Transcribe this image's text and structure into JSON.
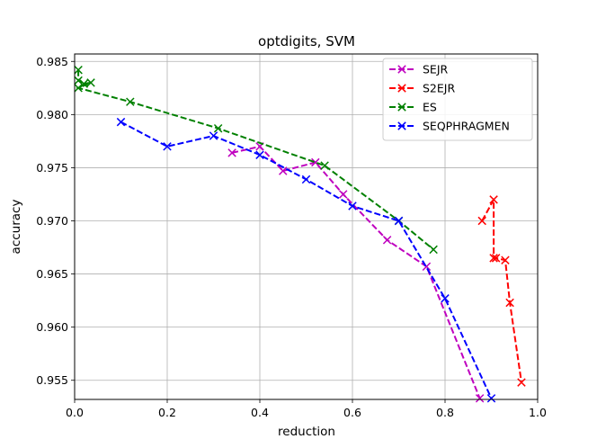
{
  "chart_data": {
    "type": "line",
    "title": "optdigits, SVM",
    "xlabel": "reduction",
    "ylabel": "accuracy",
    "xlim": [
      0.0,
      1.0
    ],
    "ylim": [
      0.9532,
      0.9857
    ],
    "xticks": [
      0.0,
      0.2,
      0.4,
      0.6,
      0.8,
      1.0
    ],
    "xtick_labels": [
      "0.0",
      "0.2",
      "0.4",
      "0.6",
      "0.8",
      "1.0"
    ],
    "yticks": [
      0.955,
      0.96,
      0.965,
      0.97,
      0.975,
      0.98,
      0.985
    ],
    "ytick_labels": [
      "0.955",
      "0.960",
      "0.965",
      "0.970",
      "0.975",
      "0.980",
      "0.985"
    ],
    "grid": true,
    "legend_position": "top-right",
    "series": [
      {
        "name": "SEJR",
        "color": "#bf00bf",
        "marker": "x",
        "linestyle": "dashed",
        "points": [
          [
            0.34,
            0.9764
          ],
          [
            0.4,
            0.977
          ],
          [
            0.45,
            0.9747
          ],
          [
            0.52,
            0.9755
          ],
          [
            0.58,
            0.9725
          ],
          [
            0.675,
            0.9682
          ],
          [
            0.76,
            0.9657
          ],
          [
            0.875,
            0.9533
          ]
        ]
      },
      {
        "name": "S2EJR",
        "color": "#ff0000",
        "marker": "x",
        "linestyle": "dashed",
        "points": [
          [
            0.88,
            0.97
          ],
          [
            0.905,
            0.972
          ],
          [
            0.905,
            0.9665
          ],
          [
            0.91,
            0.9665
          ],
          [
            0.93,
            0.9663
          ],
          [
            0.94,
            0.9623
          ],
          [
            0.965,
            0.9548
          ]
        ]
      },
      {
        "name": "ES",
        "color": "#008000",
        "marker": "x",
        "linestyle": "dashed",
        "points": [
          [
            0.008,
            0.9842
          ],
          [
            0.008,
            0.9832
          ],
          [
            0.02,
            0.9829
          ],
          [
            0.035,
            0.983
          ],
          [
            0.008,
            0.9825
          ],
          [
            0.12,
            0.9812
          ],
          [
            0.31,
            0.9787
          ],
          [
            0.54,
            0.9752
          ],
          [
            0.7,
            0.97
          ],
          [
            0.775,
            0.9673
          ]
        ]
      },
      {
        "name": "SEQPHRAGMEN",
        "color": "#0000ff",
        "marker": "x",
        "linestyle": "dashed",
        "points": [
          [
            0.1,
            0.9793
          ],
          [
            0.2,
            0.977
          ],
          [
            0.3,
            0.978
          ],
          [
            0.4,
            0.9762
          ],
          [
            0.5,
            0.9739
          ],
          [
            0.6,
            0.9714
          ],
          [
            0.7,
            0.97
          ],
          [
            0.8,
            0.9627
          ],
          [
            0.9,
            0.9533
          ]
        ]
      }
    ]
  }
}
